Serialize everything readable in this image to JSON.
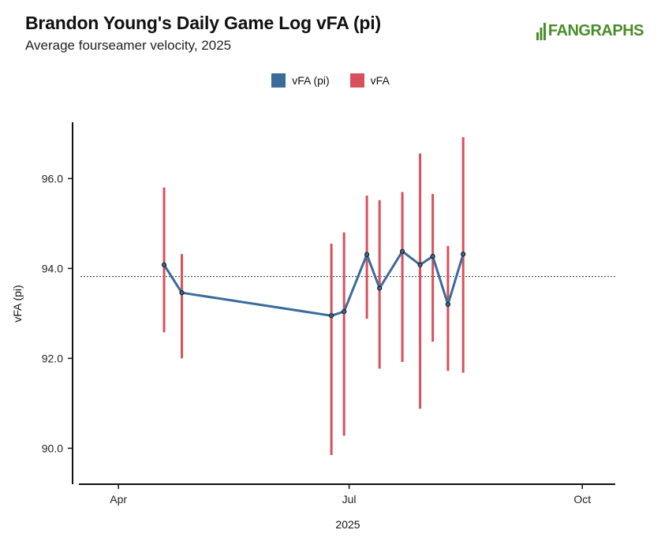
{
  "header": {
    "title": "Brandon Young's Daily Game Log vFA (pi)",
    "subtitle": "Average fourseamer velocity, 2025",
    "logo_text": "FANGRAPHS"
  },
  "colors": {
    "line": "#3b6b9a",
    "range": "#d9505c",
    "logo": "#4a8c2a",
    "axis": "#111111"
  },
  "chart_data": {
    "type": "line",
    "xlabel": "2025",
    "ylabel": "vFA (pi)",
    "x_ticks": [
      {
        "date": "2025-04-01",
        "label": "Apr"
      },
      {
        "date": "2025-07-01",
        "label": "Jul"
      },
      {
        "date": "2025-10-01",
        "label": "Oct"
      }
    ],
    "y_ticks": [
      "90.0",
      "92.0",
      "94.0",
      "96.0"
    ],
    "xlim": [
      "2025-03-17",
      "2025-10-14"
    ],
    "ylim": [
      89.2,
      97.2
    ],
    "reference_line": {
      "value": 93.82,
      "style": "dotted"
    },
    "legend": {
      "position": "top-center"
    },
    "grid": false,
    "series": [
      {
        "name": "vFA (pi)",
        "type": "line",
        "dates": [
          "2025-04-19",
          "2025-04-26",
          "2025-06-24",
          "2025-06-29",
          "2025-07-08",
          "2025-07-13",
          "2025-07-22",
          "2025-07-29",
          "2025-08-03",
          "2025-08-09",
          "2025-08-15"
        ],
        "values": [
          94.08,
          93.46,
          92.95,
          93.04,
          94.31,
          93.56,
          94.38,
          94.08,
          94.27,
          93.2,
          94.32
        ]
      },
      {
        "name": "vFA",
        "type": "range",
        "dates": [
          "2025-04-19",
          "2025-04-26",
          "2025-06-24",
          "2025-06-29",
          "2025-07-08",
          "2025-07-13",
          "2025-07-22",
          "2025-07-29",
          "2025-08-03",
          "2025-08-09",
          "2025-08-15"
        ],
        "min": [
          92.58,
          92.0,
          89.85,
          90.28,
          92.88,
          91.77,
          91.92,
          90.88,
          92.37,
          91.72,
          91.68
        ],
        "max": [
          95.8,
          94.32,
          94.55,
          94.8,
          95.62,
          95.52,
          95.7,
          96.56,
          95.66,
          94.5,
          96.92
        ]
      }
    ]
  }
}
